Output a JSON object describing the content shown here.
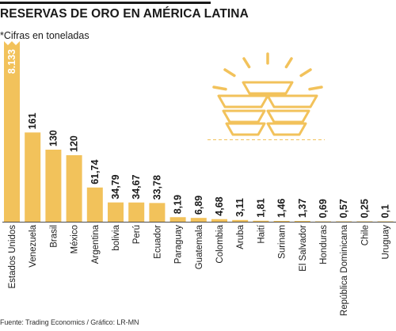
{
  "header": {
    "title": "RESERVAS DE ORO EN AMÉRICA LATINA",
    "subtitle": "*Cifras en toneladas"
  },
  "footer": {
    "source": "Fuente: Trading Economics / Gráfico: LR-MN"
  },
  "colors": {
    "bar": "#f2c25b",
    "bar_top_label": "#ffffff",
    "baseline": "#4a4a4a",
    "illustration": "#f2c25b"
  },
  "illustration": {
    "name": "gold-bars-icon"
  },
  "chart_data": {
    "type": "bar",
    "title": "RESERVAS DE ORO EN AMÉRICA LATINA",
    "subtitle": "*Cifras en toneladas",
    "xlabel": "",
    "ylabel": "",
    "axis_break": true,
    "orientation": "vertical",
    "grid": false,
    "categories": [
      "Estados Unidos",
      "Venezuela",
      "Brasil",
      "México",
      "Argentina",
      "bolivia",
      "Perú",
      "Ecuador",
      "Paraguay",
      "Guatemala",
      "Colombia",
      "Aruba",
      "Haití",
      "Surinam",
      "El Salvador",
      "Honduras",
      "República Dominicana",
      "Chile",
      "Uruguay"
    ],
    "values": [
      8133,
      161,
      130,
      120,
      61.74,
      34.79,
      34.67,
      33.78,
      8.19,
      6.89,
      4.68,
      3.11,
      1.81,
      1.46,
      1.37,
      0.69,
      0.57,
      0.25,
      0.1
    ],
    "value_labels": [
      "8.133",
      "161",
      "130",
      "120",
      "61,74",
      "34,79",
      "34,67",
      "33,78",
      "8,19",
      "6,89",
      "4,68",
      "3,11",
      "1,81",
      "1,46",
      "1,37",
      "0,69",
      "0,57",
      "0,25",
      "0,1"
    ]
  }
}
